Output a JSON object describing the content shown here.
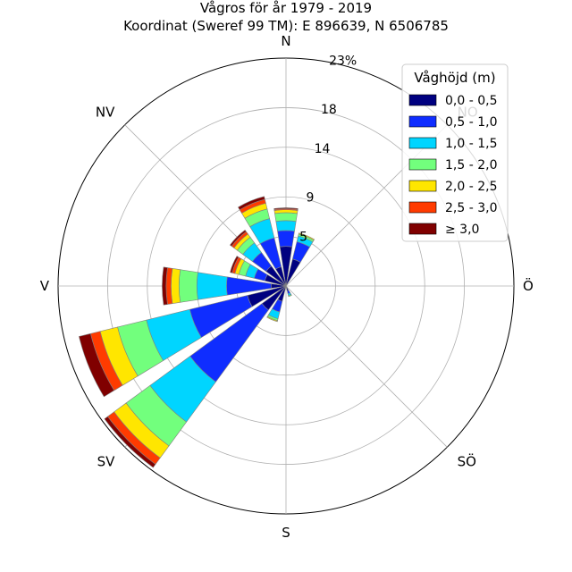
{
  "chart_data": {
    "type": "wind-rose",
    "title_lines": [
      "Vågros för år 1979 - 2019",
      "Koordinat (Sweref 99 TM): E 896639, N 6506785"
    ],
    "direction_labels": [
      "N",
      "NO",
      "Ö",
      "SÖ",
      "S",
      "SV",
      "V",
      "NV"
    ],
    "radial_ticks": [
      5,
      9,
      14,
      18,
      23
    ],
    "radial_tick_labels": [
      "5",
      "9",
      "14",
      "18",
      "23%"
    ],
    "rmax": 23,
    "grid": true,
    "legend": {
      "title": "Våghöjd (m)",
      "placement": "top-right",
      "entries": [
        "0,0 - 0,5",
        "0,5 - 1,0",
        "1,0 - 1,5",
        "1,5 - 2,0",
        "2,0 - 2,5",
        "2,5 - 3,0",
        "≥ 3,0"
      ],
      "colors": [
        "#000080",
        "#0f2dff",
        "#00d5ff",
        "#72ff7d",
        "#ffe600",
        "#ff3b00",
        "#800000"
      ]
    },
    "bins": [
      {
        "direction_deg": 0,
        "cumulative": [
          4.0,
          5.6,
          6.6,
          7.4,
          7.7,
          7.8,
          7.9
        ]
      },
      {
        "direction_deg": 22.5,
        "cumulative": [
          2.8,
          4.6,
          5.2,
          5.4,
          5.5,
          5.5,
          5.5
        ]
      },
      {
        "direction_deg": 157.5,
        "cumulative": [
          0.5,
          0.8,
          1.0,
          1.1,
          1.1,
          1.1,
          1.1
        ]
      },
      {
        "direction_deg": 202.5,
        "cumulative": [
          1.6,
          2.7,
          3.4,
          3.6,
          3.7,
          3.7,
          3.7
        ]
      },
      {
        "direction_deg": 225,
        "cumulative": [
          3.0,
          12.0,
          17.0,
          20.0,
          21.5,
          22.3,
          22.7
        ]
      },
      {
        "direction_deg": 247.5,
        "cumulative": [
          4.0,
          10.0,
          14.5,
          17.5,
          19.3,
          20.3,
          21.5
        ]
      },
      {
        "direction_deg": 270,
        "cumulative": [
          1.5,
          6.0,
          9.0,
          10.8,
          11.6,
          12.1,
          12.5
        ]
      },
      {
        "direction_deg": 292.5,
        "cumulative": [
          2.2,
          3.3,
          4.2,
          4.9,
          5.3,
          5.6,
          5.8
        ]
      },
      {
        "direction_deg": 315,
        "cumulative": [
          2.5,
          4.2,
          5.4,
          6.1,
          6.5,
          6.8,
          7.0
        ]
      },
      {
        "direction_deg": 337.5,
        "cumulative": [
          2.0,
          5.0,
          7.0,
          8.0,
          8.6,
          9.0,
          9.3
        ]
      }
    ]
  }
}
